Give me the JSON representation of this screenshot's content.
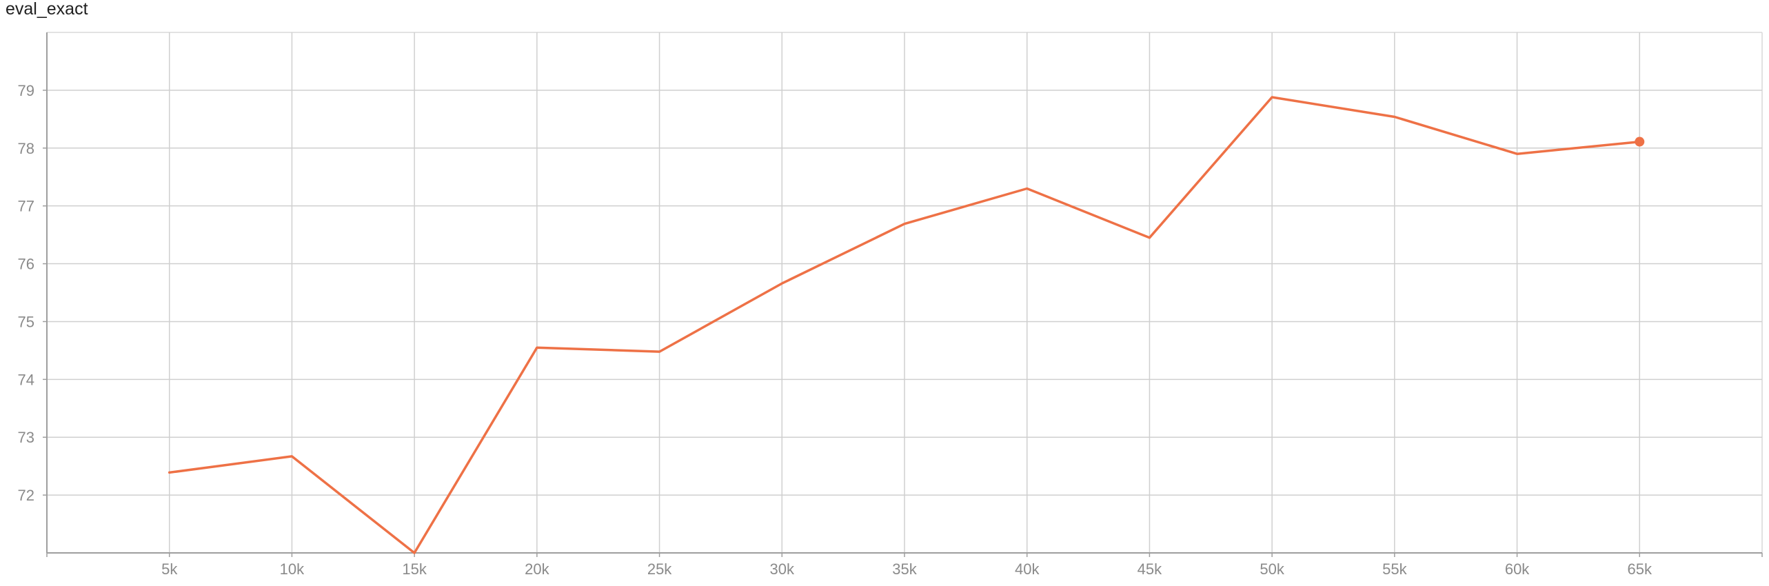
{
  "chart_data": {
    "type": "line",
    "title": "eval_exact",
    "xlabel": "",
    "ylabel": "",
    "x_ticks": [
      {
        "value": 5000,
        "label": "5k"
      },
      {
        "value": 10000,
        "label": "10k"
      },
      {
        "value": 15000,
        "label": "15k"
      },
      {
        "value": 20000,
        "label": "20k"
      },
      {
        "value": 25000,
        "label": "25k"
      },
      {
        "value": 30000,
        "label": "30k"
      },
      {
        "value": 35000,
        "label": "35k"
      },
      {
        "value": 40000,
        "label": "40k"
      },
      {
        "value": 45000,
        "label": "45k"
      },
      {
        "value": 50000,
        "label": "50k"
      },
      {
        "value": 55000,
        "label": "55k"
      },
      {
        "value": 60000,
        "label": "60k"
      },
      {
        "value": 65000,
        "label": "65k"
      }
    ],
    "y_ticks": [
      {
        "value": 72,
        "label": "72"
      },
      {
        "value": 73,
        "label": "73"
      },
      {
        "value": 74,
        "label": "74"
      },
      {
        "value": 75,
        "label": "75"
      },
      {
        "value": 76,
        "label": "76"
      },
      {
        "value": 77,
        "label": "77"
      },
      {
        "value": 78,
        "label": "78"
      },
      {
        "value": 79,
        "label": "79"
      }
    ],
    "xlim": [
      0,
      70000
    ],
    "ylim": [
      71,
      80
    ],
    "grid": true,
    "series": [
      {
        "color": "#ee7146",
        "x": [
          5000,
          10000,
          15000,
          20000,
          25000,
          30000,
          35000,
          40000,
          45000,
          50000,
          55000,
          60000,
          65000
        ],
        "y": [
          72.39,
          72.67,
          71.0,
          74.55,
          74.48,
          75.66,
          76.69,
          77.3,
          76.45,
          78.88,
          78.54,
          77.9,
          78.11
        ]
      }
    ]
  }
}
